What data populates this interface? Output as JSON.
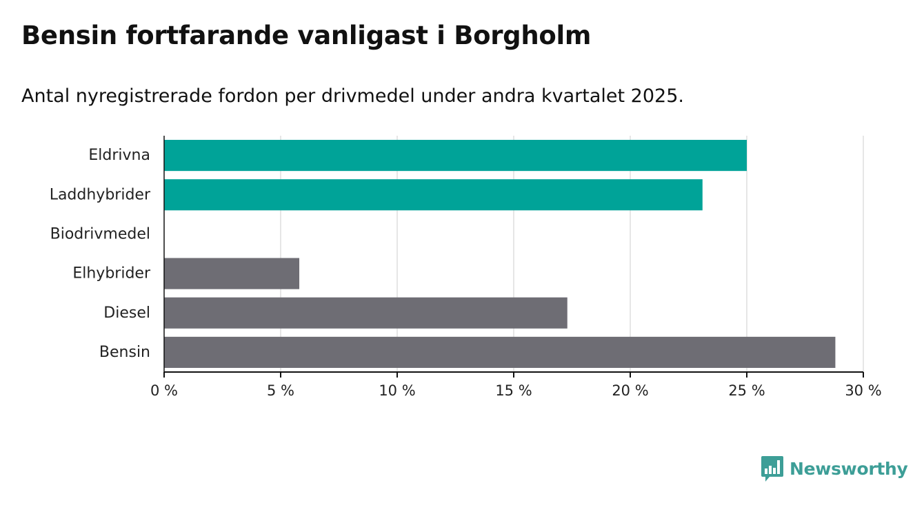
{
  "title": "Bensin fortfarande vanligast i Borgholm",
  "subtitle": "Antal nyregistrerade fordon per drivmedel under andra kvartalet 2025.",
  "brand": {
    "name": "Newsworthy",
    "logo_icon": "newsworthy-bar-chart-bubble-icon",
    "color": "#3d9e97"
  },
  "chart_data": {
    "type": "bar",
    "orientation": "horizontal",
    "title": "Bensin fortfarande vanligast i Borgholm",
    "subtitle": "Antal nyregistrerade fordon per drivmedel under andra kvartalet 2025.",
    "xlabel": "",
    "ylabel": "",
    "xlim": [
      0,
      30
    ],
    "x_ticks": [
      0,
      5,
      10,
      15,
      20,
      25,
      30
    ],
    "x_tick_labels": [
      "0 %",
      "5 %",
      "10 %",
      "15 %",
      "20 %",
      "25 %",
      "30 %"
    ],
    "grid": "vertical",
    "legend": "none",
    "categories": [
      "Eldrivna",
      "Laddhybrider",
      "Biodrivmedel",
      "Elhybrider",
      "Diesel",
      "Bensin"
    ],
    "values": [
      25.0,
      23.1,
      0,
      5.8,
      17.3,
      28.8
    ],
    "colors": [
      "#00a398",
      "#00a398",
      "#00a398",
      "#6e6d74",
      "#6e6d74",
      "#6e6d74"
    ]
  }
}
